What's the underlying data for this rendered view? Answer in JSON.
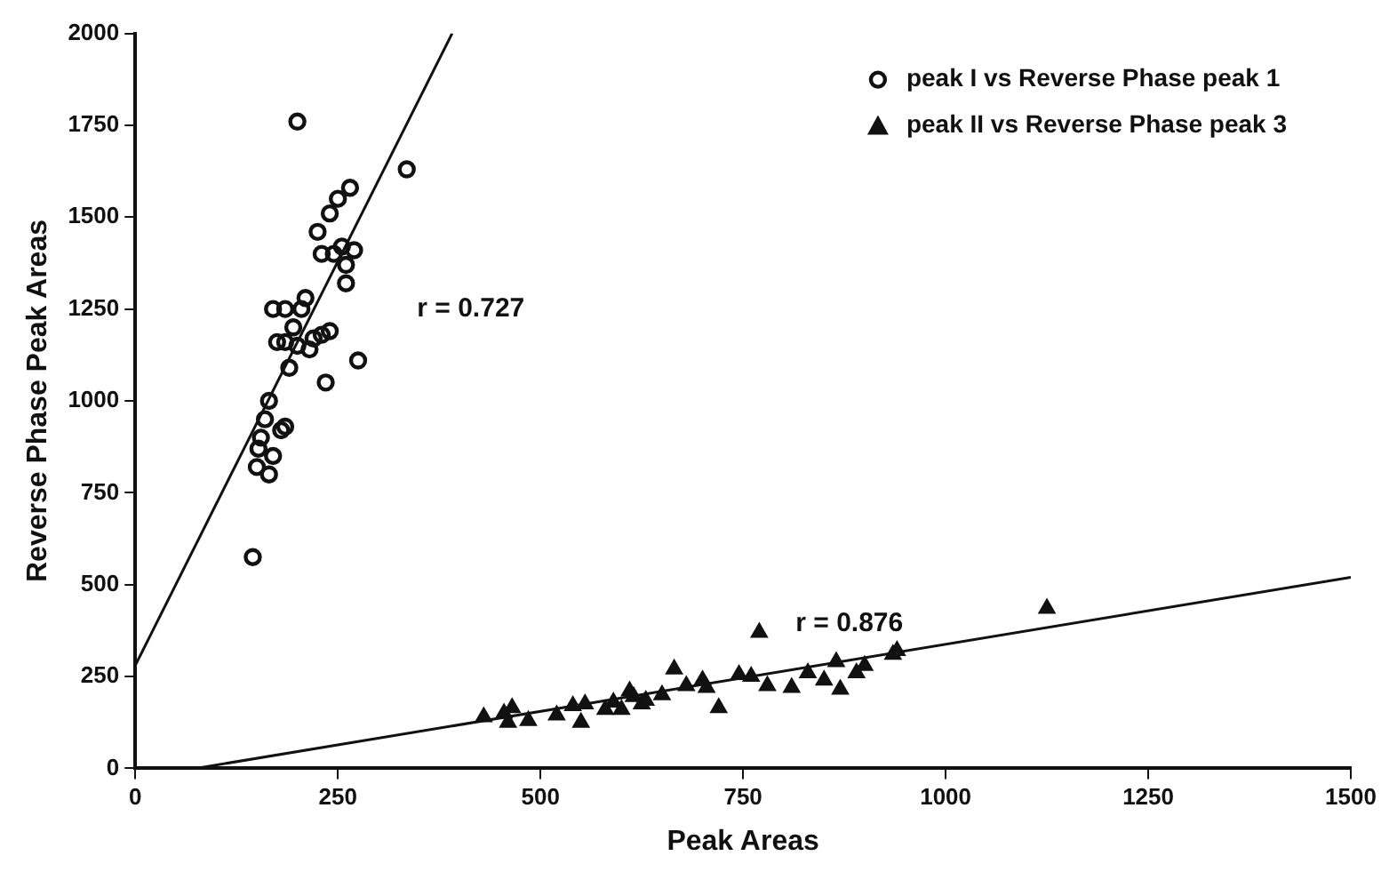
{
  "chart_data": {
    "type": "scatter",
    "xlabel": "Peak Areas",
    "ylabel": "Reverse Phase Peak Areas",
    "xlim": [
      0,
      1500
    ],
    "xticks": [
      0,
      250,
      500,
      750,
      1000,
      1250,
      1500
    ],
    "ylim": [
      0,
      2000
    ],
    "yticks": [
      0,
      250,
      500,
      750,
      1000,
      1250,
      1500,
      1750,
      2000
    ],
    "grid": false,
    "legend": "top right",
    "annotations": [
      "r = 0.727",
      "r = 0.876"
    ],
    "series": [
      {
        "name": "peak I vs Reverse Phase peak 1",
        "color": "#111111",
        "marker": "circle",
        "x": [
          145,
          150,
          152,
          155,
          160,
          165,
          165,
          170,
          175,
          180,
          185,
          190,
          170,
          185,
          195,
          200,
          200,
          210,
          215,
          220,
          225,
          230,
          235,
          240,
          245,
          250,
          255,
          260,
          260,
          265,
          270,
          275,
          335,
          230,
          240,
          205,
          185
        ],
        "values": [
          575,
          820,
          870,
          900,
          950,
          1000,
          800,
          850,
          1160,
          920,
          930,
          1090,
          1250,
          1250,
          1200,
          1760,
          1150,
          1280,
          1140,
          1170,
          1460,
          1400,
          1050,
          1510,
          1400,
          1550,
          1420,
          1320,
          1370,
          1580,
          1410,
          1110,
          1630,
          1180,
          1190,
          1250,
          1160
        ]
      },
      {
        "name": "peak II vs Reverse Phase peak 3",
        "color": "#111111",
        "marker": "triangle",
        "x": [
          430,
          455,
          460,
          465,
          485,
          520,
          540,
          550,
          555,
          590,
          600,
          610,
          625,
          630,
          650,
          665,
          680,
          700,
          705,
          720,
          745,
          760,
          770,
          780,
          810,
          830,
          850,
          865,
          870,
          890,
          900,
          935,
          940,
          1125,
          615,
          580
        ],
        "values": [
          140,
          150,
          125,
          165,
          130,
          145,
          170,
          125,
          175,
          180,
          160,
          210,
          175,
          185,
          200,
          270,
          225,
          240,
          220,
          165,
          255,
          250,
          370,
          225,
          220,
          260,
          240,
          290,
          215,
          260,
          280,
          310,
          320,
          435,
          195,
          160
        ]
      },
      {
        "type": "line",
        "color": "#111111",
        "marker": "none",
        "x": [
          0,
          391
        ],
        "values": [
          280,
          2000
        ]
      },
      {
        "type": "line",
        "color": "#111111",
        "marker": "none",
        "x": [
          75,
          1500
        ],
        "values": [
          0,
          520
        ]
      }
    ]
  }
}
